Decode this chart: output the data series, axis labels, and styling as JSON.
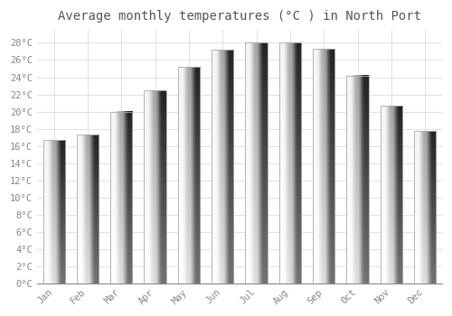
{
  "title": "Average monthly temperatures (°C ) in North Port",
  "months": [
    "Jan",
    "Feb",
    "Mar",
    "Apr",
    "May",
    "Jun",
    "Jul",
    "Aug",
    "Sep",
    "Oct",
    "Nov",
    "Dec"
  ],
  "temperatures": [
    16.7,
    17.3,
    20.0,
    22.5,
    25.2,
    27.2,
    28.0,
    28.0,
    27.3,
    24.2,
    20.7,
    17.7
  ],
  "bar_color_top": "#F5A623",
  "bar_color_bottom": "#FFD966",
  "bar_edge_color": "#AAAAAA",
  "background_color": "#FFFFFF",
  "plot_bg_color": "#FFFFFF",
  "grid_color": "#DDDDDD",
  "title_fontsize": 10,
  "tick_fontsize": 7.5,
  "ylim": [
    0,
    29.5
  ],
  "yticks": [
    0,
    2,
    4,
    6,
    8,
    10,
    12,
    14,
    16,
    18,
    20,
    22,
    24,
    26,
    28
  ],
  "tick_label_color": "#888888",
  "title_color": "#555555",
  "font_family": "monospace",
  "bar_width": 0.65
}
